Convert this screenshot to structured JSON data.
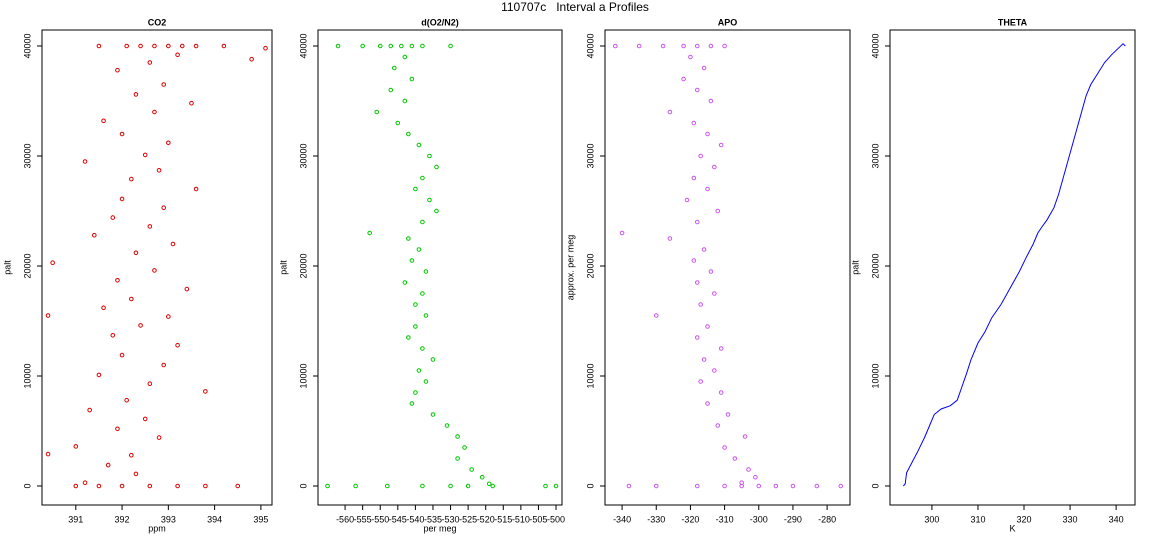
{
  "title": "110707c   Interval a Profiles",
  "chart_data": [
    {
      "type": "scatter",
      "title": "CO2",
      "xlabel": "ppm",
      "ylabel": "palt",
      "color": "#e00000",
      "xlim": [
        390.27,
        395.24
      ],
      "ylim": [
        -1727,
        41455
      ],
      "xticks": [
        391,
        392,
        393,
        394,
        395
      ],
      "yticks": [
        0,
        10000,
        20000,
        30000,
        40000
      ],
      "x": [
        392.1,
        392.4,
        392.7,
        393.0,
        393.3,
        393.6,
        391.5,
        394.2,
        392.6,
        393.2,
        391.9,
        392.9,
        392.3,
        393.5,
        392.7,
        391.6,
        392.0,
        393.0,
        392.5,
        391.2,
        392.8,
        392.2,
        393.6,
        392.0,
        392.9,
        391.8,
        392.6,
        391.4,
        393.1,
        392.3,
        390.5,
        392.7,
        391.9,
        393.4,
        392.2,
        391.6,
        393.0,
        390.4,
        392.4,
        391.8,
        393.2,
        392.0,
        392.9,
        391.5,
        392.6,
        393.8,
        392.1,
        391.3,
        392.5,
        391.9,
        392.8,
        391.0,
        392.2,
        390.4,
        391.7,
        392.3,
        391.2,
        391.5,
        392.0,
        392.6,
        393.2,
        393.8,
        394.5,
        391.0,
        394.8,
        395.1
      ],
      "values": [
        40000,
        40000,
        40000,
        40000,
        40000,
        40000,
        40000,
        40000,
        38500,
        39200,
        37800,
        36500,
        35600,
        34800,
        34000,
        33200,
        32000,
        31200,
        30100,
        29500,
        28700,
        27900,
        27000,
        26100,
        25300,
        24400,
        23600,
        22800,
        22000,
        21200,
        20300,
        19600,
        18700,
        17900,
        17000,
        16200,
        15400,
        15500,
        14600,
        13700,
        12800,
        11900,
        11000,
        10100,
        9300,
        8600,
        7800,
        6900,
        6100,
        5200,
        4400,
        3600,
        2800,
        2900,
        1900,
        1100,
        300,
        0,
        0,
        0,
        0,
        0,
        0,
        0,
        38800,
        39800
      ]
    },
    {
      "type": "scatter",
      "title": "d(O2/N2)",
      "xlabel": "per meg",
      "ylabel": "palt",
      "color": "#00c800",
      "xlim": [
        -567.7,
        -498.3
      ],
      "ylim": [
        -1727,
        41455
      ],
      "xticks": [
        -560,
        -555,
        -550,
        -545,
        -540,
        -535,
        -530,
        -525,
        -520,
        -515,
        -510,
        -505,
        -500
      ],
      "yticks": [
        0,
        10000,
        20000,
        30000,
        40000
      ],
      "x": [
        -562,
        -555,
        -550,
        -547,
        -544,
        -541,
        -538,
        -530,
        -543,
        -546,
        -541,
        -547,
        -543,
        -551,
        -545,
        -542,
        -539,
        -536,
        -534,
        -538,
        -540,
        -536,
        -534,
        -538,
        -553,
        -542,
        -539,
        -541,
        -537,
        -543,
        -538,
        -540,
        -537,
        -540,
        -542,
        -538,
        -535,
        -539,
        -537,
        -540,
        -541,
        -535,
        -531,
        -528,
        -526,
        -528,
        -524,
        -521,
        -519,
        -565,
        -557,
        -548,
        -538,
        -530,
        -525,
        -518,
        -503,
        -500
      ],
      "values": [
        40000,
        40000,
        40000,
        40000,
        40000,
        40000,
        40000,
        40000,
        39000,
        38000,
        37000,
        36000,
        35000,
        34000,
        33000,
        32000,
        31000,
        30000,
        29000,
        28000,
        27000,
        26000,
        25000,
        24000,
        23000,
        22500,
        21500,
        20500,
        19500,
        18500,
        17500,
        16500,
        15500,
        14500,
        13500,
        12500,
        11500,
        10500,
        9500,
        8500,
        7500,
        6500,
        5500,
        4500,
        3500,
        2500,
        1500,
        800,
        200,
        0,
        0,
        0,
        0,
        0,
        0,
        0,
        0,
        0
      ]
    },
    {
      "type": "scatter",
      "title": "APO",
      "ylabel": "approx. per meg",
      "color": "#cc55ee",
      "xlim": [
        -345,
        -273.3
      ],
      "ylim": [
        -1727,
        41455
      ],
      "xticks": [
        -340,
        -330,
        -320,
        -310,
        -300,
        -290,
        -280
      ],
      "yticks": [
        0,
        10000,
        20000,
        30000,
        40000
      ],
      "x": [
        -342,
        -335,
        -328,
        -322,
        -318,
        -314,
        -310,
        -320,
        -316,
        -322,
        -318,
        -314,
        -326,
        -319,
        -315,
        -311,
        -317,
        -313,
        -319,
        -315,
        -321,
        -312,
        -318,
        -340,
        -326,
        -316,
        -319,
        -314,
        -318,
        -313,
        -317,
        -330,
        -315,
        -318,
        -311,
        -316,
        -313,
        -317,
        -311,
        -315,
        -309,
        -312,
        -304,
        -310,
        -307,
        -303,
        -301,
        -305,
        -338,
        -330,
        -318,
        -310,
        -305,
        -300,
        -295,
        -290,
        -283,
        -276
      ],
      "values": [
        40000,
        40000,
        40000,
        40000,
        40000,
        40000,
        40000,
        39000,
        38000,
        37000,
        36000,
        35000,
        34000,
        33000,
        32000,
        31000,
        30000,
        29000,
        28000,
        27000,
        26000,
        25000,
        24000,
        23000,
        22500,
        21500,
        20500,
        19500,
        18500,
        17500,
        16500,
        15500,
        14500,
        13500,
        12500,
        11500,
        10500,
        9500,
        8500,
        7500,
        6500,
        5500,
        4500,
        3500,
        2500,
        1500,
        800,
        300,
        0,
        0,
        0,
        0,
        0,
        0,
        0,
        0,
        0,
        0
      ]
    },
    {
      "type": "line",
      "title": "THETA",
      "xlabel": "K",
      "ylabel": "palt",
      "color": "#0000ff",
      "xlim": [
        290.9,
        344.1
      ],
      "ylim": [
        -1727,
        41455
      ],
      "xticks": [
        300,
        310,
        320,
        330,
        340
      ],
      "yticks": [
        0,
        10000,
        20000,
        30000,
        40000
      ],
      "x": [
        293.8,
        294.2,
        294.5,
        295.5,
        297,
        298.5,
        299.5,
        300.5,
        302,
        304,
        305.5,
        306.5,
        307.5,
        308.5,
        310,
        311.5,
        313,
        315,
        317,
        319,
        320.5,
        322,
        323,
        323.8,
        325,
        326.5,
        327.5,
        328.5,
        329.5,
        330.5,
        331.5,
        332.5,
        333.5,
        334.5,
        336,
        337.5,
        339,
        340.5,
        341.5,
        342
      ],
      "values": [
        0,
        200,
        1200,
        2000,
        3200,
        4500,
        5500,
        6500,
        7000,
        7300,
        7800,
        9000,
        10200,
        11500,
        13000,
        14000,
        15300,
        16500,
        18000,
        19500,
        20800,
        22000,
        23000,
        23500,
        24200,
        25300,
        26500,
        28000,
        29500,
        31000,
        32500,
        34000,
        35500,
        36500,
        37500,
        38500,
        39200,
        39800,
        40200,
        40000
      ]
    }
  ]
}
